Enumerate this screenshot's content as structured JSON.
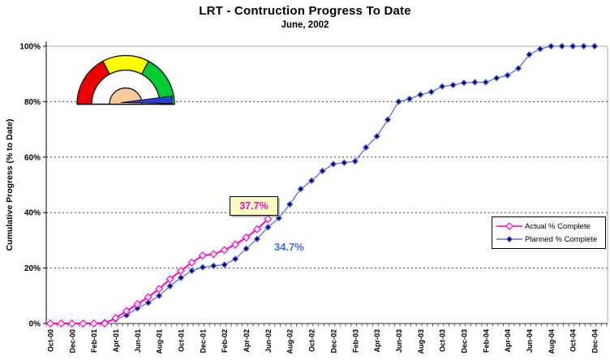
{
  "chart": {
    "title": "LRT - Contruction Progress To Date",
    "subtitle": "June, 2002",
    "y_axis_title": "Cumulative Progress (% to Date)",
    "legend": {
      "actual_label": "Actual % Complete",
      "planned_label": "Planned % Complete"
    },
    "annotations": {
      "actual_value_label": "37.7%",
      "planned_value_label": "34.7%"
    }
  },
  "chart_data": {
    "type": "line",
    "title": "LRT - Contruction Progress To Date",
    "subtitle": "June, 2002",
    "xlabel": "",
    "ylabel": "Cumulative Progress (% to Date)",
    "ylim": [
      0,
      100
    ],
    "y_ticks": [
      "0%",
      "20%",
      "40%",
      "60%",
      "80%",
      "100%"
    ],
    "y_tick_values": [
      0,
      20,
      40,
      60,
      80,
      100
    ],
    "gridline_values": [
      20,
      40,
      60,
      80
    ],
    "grid": "dashed-horizontal",
    "legend_position": "middle-right",
    "x_label_every_n": 2,
    "x": [
      "Oct-00",
      "Nov-00",
      "Dec-00",
      "Jan-01",
      "Feb-01",
      "Mar-01",
      "Apr-01",
      "May-01",
      "Jun-01",
      "Jul-01",
      "Aug-01",
      "Sep-01",
      "Oct-01",
      "Nov-01",
      "Dec-01",
      "Jan-02",
      "Feb-02",
      "Mar-02",
      "Apr-02",
      "May-02",
      "Jun-02",
      "Jul-02",
      "Aug-02",
      "Sep-02",
      "Oct-02",
      "Nov-02",
      "Dec-02",
      "Jan-03",
      "Feb-03",
      "Mar-03",
      "Apr-03",
      "May-03",
      "Jun-03",
      "Jul-03",
      "Aug-03",
      "Sep-03",
      "Oct-03",
      "Nov-03",
      "Dec-03",
      "Jan-04",
      "Feb-04",
      "Mar-04",
      "Apr-04",
      "May-04",
      "Jun-04",
      "Jul-04",
      "Aug-04",
      "Sep-04",
      "Oct-04",
      "Nov-04",
      "Dec-04"
    ],
    "series": [
      {
        "name": "Actual % Complete",
        "color": "#FF00CC",
        "marker": "open-diamond",
        "marker_fill": "#FFFFFF",
        "values": [
          0,
          0,
          0,
          0,
          0,
          0,
          2,
          4.5,
          7,
          9.5,
          12.5,
          16,
          19,
          22,
          24.5,
          25,
          26.5,
          28.5,
          31,
          34,
          37.7
        ]
      },
      {
        "name": "Planned % Complete",
        "color": "#5C6FE0",
        "marker": "diamond",
        "marker_fill": "#000070",
        "values": [
          0,
          0,
          0,
          0,
          0,
          0.5,
          1.5,
          3,
          5.5,
          7.5,
          10,
          13.5,
          16.5,
          19,
          20.3,
          20.8,
          21.2,
          23.3,
          27,
          30.5,
          34.7,
          38,
          43,
          48.5,
          51.5,
          55,
          57.5,
          58,
          58.5,
          63.5,
          67.5,
          73.5,
          80,
          81,
          82.5,
          83.5,
          85.5,
          86,
          86.8,
          87,
          87,
          88.5,
          89.5,
          92,
          97,
          99,
          100,
          100,
          100,
          100,
          100
        ]
      }
    ],
    "annotations": [
      {
        "text": "37.7%",
        "series": "Actual % Complete",
        "x": "Jun-02",
        "style": "yellow-box",
        "color": "#FF00CC"
      },
      {
        "text": "34.7%",
        "series": "Planned % Complete",
        "x": "Jun-02",
        "style": "plain",
        "color": "#4169E1"
      }
    ]
  },
  "gauge": {
    "segments": [
      {
        "name": "red-zone",
        "from": 180,
        "to": 118,
        "color": "#EE0000"
      },
      {
        "name": "yellow-zone",
        "from": 118,
        "to": 62,
        "color": "#FFFF00"
      },
      {
        "name": "green-zone",
        "from": 62,
        "to": 0,
        "color": "#00CC33"
      }
    ],
    "hub_color": "#F8C99B",
    "needle_color": "#2B3FD6"
  }
}
